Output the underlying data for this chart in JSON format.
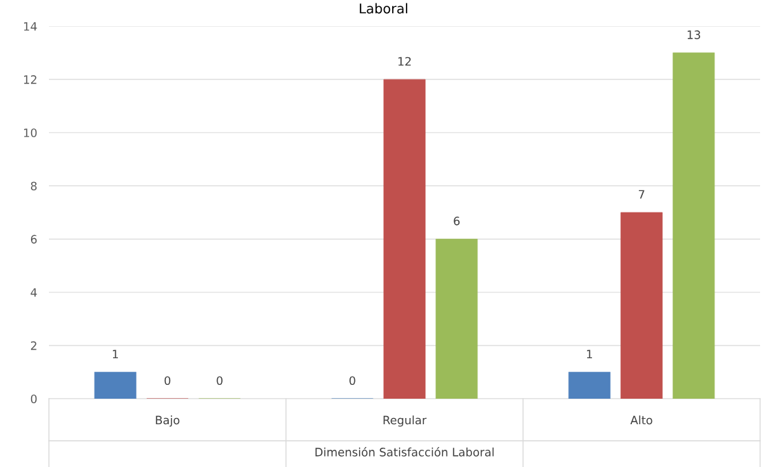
{
  "chart_data": {
    "type": "bar",
    "title": "Laboral",
    "xlabel": "Dimensión Satisfacción Laboral",
    "categories": [
      "Bajo",
      "Regular",
      "Alto"
    ],
    "series": [
      {
        "color": "#4f81bd",
        "values": [
          1,
          0,
          1
        ]
      },
      {
        "color": "#c0504d",
        "values": [
          0,
          12,
          7
        ]
      },
      {
        "color": "#9bbb59",
        "values": [
          0,
          6,
          13
        ]
      }
    ],
    "ylim": [
      0,
      14
    ],
    "yticks": [
      0,
      2,
      4,
      6,
      8,
      10,
      12,
      14
    ],
    "grid": "y",
    "data_labels": true,
    "legend": false
  }
}
